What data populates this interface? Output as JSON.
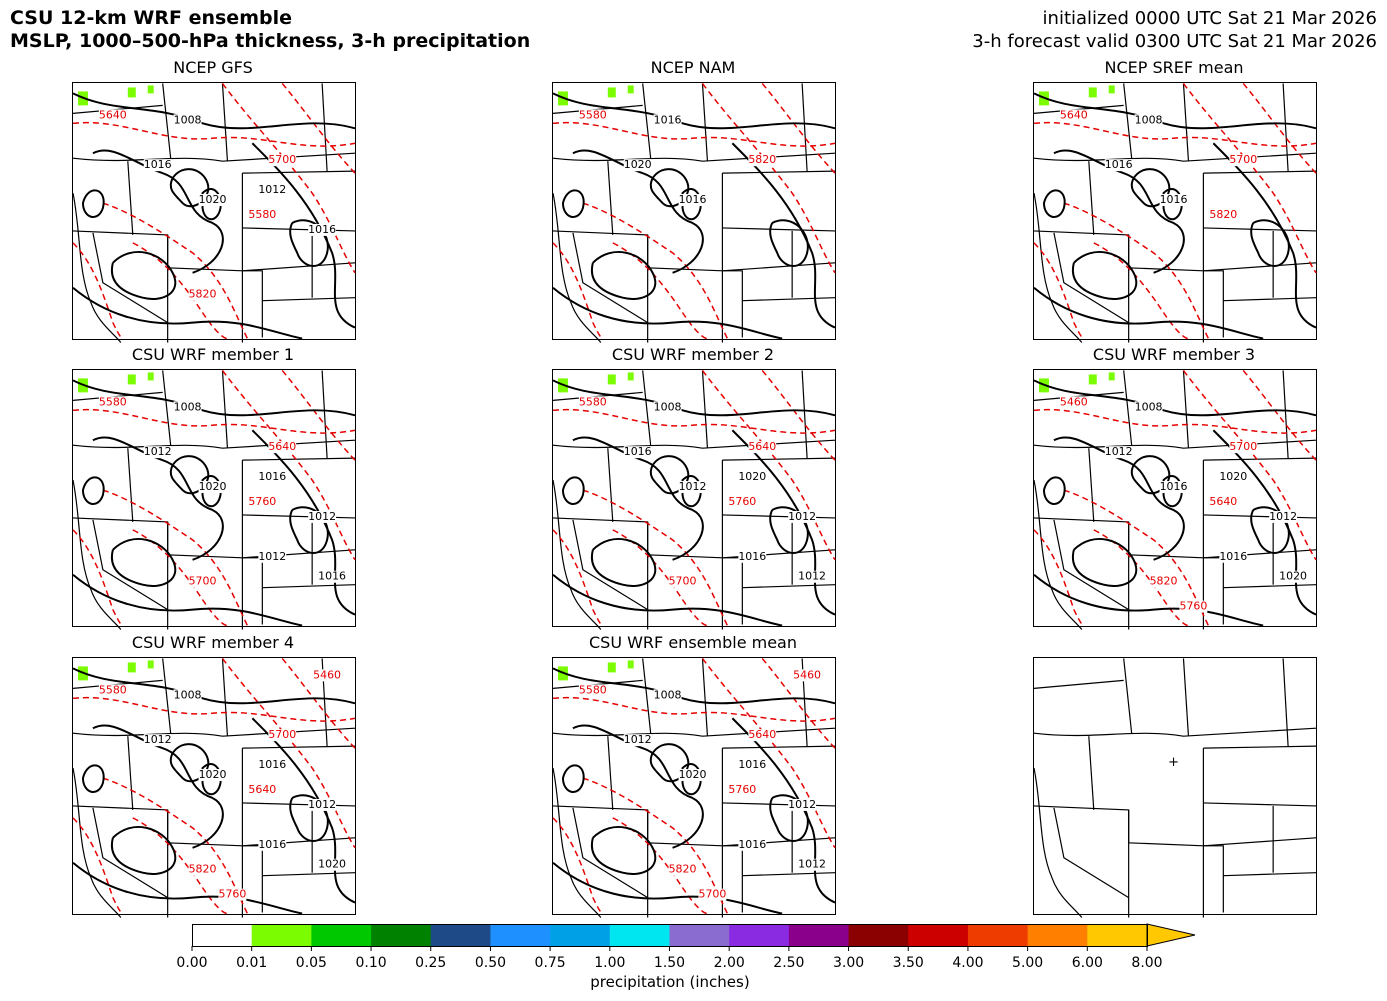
{
  "header": {
    "title_line1": "CSU 12-km WRF ensemble",
    "title_line2": "MSLP, 1000–500-hPa thickness, 3-h precipitation",
    "init": "initialized 0000 UTC Sat 21 Mar 2026",
    "valid": "3-h forecast valid 0300 UTC Sat 21 Mar 2026"
  },
  "panels": [
    {
      "title": "NCEP GFS",
      "labels": {
        "k1": "1008",
        "k2": "1016",
        "k3": "1020",
        "k4": "1012",
        "k5": "1016",
        "r1": "5640",
        "r2": "5700",
        "r3": "5580",
        "r4": "5820"
      }
    },
    {
      "title": "NCEP NAM",
      "labels": {
        "k1": "1016",
        "k2": "1020",
        "k3": "1016",
        "r1": "5580",
        "r2": "5820"
      }
    },
    {
      "title": "NCEP SREF mean",
      "labels": {
        "k1": "1008",
        "k2": "1016",
        "k3": "1016",
        "r1": "5640",
        "r2": "5700",
        "r3": "5820"
      }
    },
    {
      "title": "CSU WRF member 1",
      "labels": {
        "k1": "1008",
        "k2": "1012",
        "k3": "1020",
        "k4": "1016",
        "k5": "1012",
        "k6": "1012",
        "k7": "1016",
        "r1": "5580",
        "r2": "5640",
        "r3": "5760",
        "r4": "5700"
      }
    },
    {
      "title": "CSU WRF member 2",
      "labels": {
        "k1": "1008",
        "k2": "1016",
        "k3": "1012",
        "k4": "1020",
        "k5": "1012",
        "k6": "1016",
        "k7": "1012",
        "r1": "5580",
        "r2": "5640",
        "r3": "5760",
        "r4": "5700"
      }
    },
    {
      "title": "CSU WRF member 3",
      "labels": {
        "k1": "1008",
        "k2": "1012",
        "k3": "1016",
        "k4": "1020",
        "k5": "1012",
        "k6": "1016",
        "k7": "1020",
        "r1": "5460",
        "r2": "5700",
        "r3": "5640",
        "r4": "5820",
        "r5": "5760"
      }
    },
    {
      "title": "CSU WRF member 4",
      "labels": {
        "k1": "1008",
        "k2": "1012",
        "k3": "1020",
        "k4": "1016",
        "k5": "1012",
        "k6": "1016",
        "k7": "1020",
        "r1": "5580",
        "r2": "5700",
        "r3": "5640",
        "r4": "5820",
        "r5": "5760",
        "r6": "5460"
      }
    },
    {
      "title": "CSU WRF ensemble mean",
      "labels": {
        "k1": "1008",
        "k2": "1012",
        "k3": "1020",
        "k4": "1016",
        "k5": "1012",
        "k6": "1016",
        "k7": "1012",
        "r1": "5580",
        "r2": "5640",
        "r3": "5760",
        "r4": "5820",
        "r5": "5700",
        "r6": "5460"
      }
    },
    {
      "title": "",
      "labels": {}
    }
  ],
  "colorbar": {
    "label": "precipitation (inches)",
    "ticks": [
      "0.00",
      "0.01",
      "0.05",
      "0.10",
      "0.25",
      "0.50",
      "0.75",
      "1.00",
      "1.50",
      "2.00",
      "2.50",
      "3.00",
      "3.50",
      "4.00",
      "5.00",
      "6.00",
      "8.00"
    ],
    "colors": [
      "#ffffff",
      "#7cfc00",
      "#00c800",
      "#008200",
      "#1e4b87",
      "#1e90ff",
      "#00a0e6",
      "#00e6f0",
      "#8a6bcf",
      "#8a2be2",
      "#8b008b",
      "#8b0000",
      "#cd0000",
      "#ee3b00",
      "#ff7f00",
      "#ffc800"
    ]
  }
}
